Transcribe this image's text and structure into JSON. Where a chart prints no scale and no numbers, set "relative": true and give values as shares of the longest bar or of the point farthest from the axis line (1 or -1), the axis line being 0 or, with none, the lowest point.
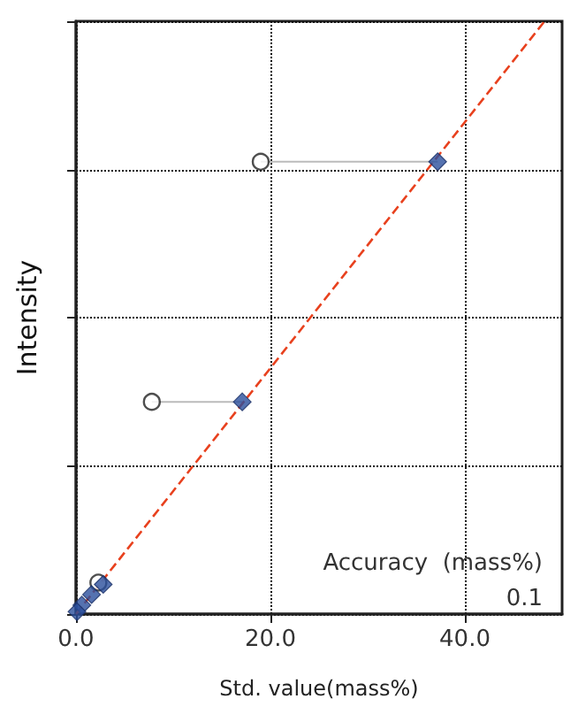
{
  "chart_data": {
    "type": "scatter",
    "relative": true,
    "xlabel": "Std. value(mass%)",
    "ylabel": "Intensity",
    "xlim": [
      0,
      50
    ],
    "xticks": [
      {
        "value": 0,
        "label": "0.0"
      },
      {
        "value": 20,
        "label": "20.0"
      },
      {
        "value": 40,
        "label": "40.0"
      }
    ],
    "tick_labels": "x",
    "grid": true,
    "annotations": [
      "Accuracy  (mass%)",
      "0.1"
    ],
    "series": [
      {
        "type": "line",
        "color": "#bbbbbb",
        "marker": "none",
        "line_style": "solid",
        "x": [
          19.0,
          37.2
        ],
        "values": [
          0.763,
          0.763
        ]
      },
      {
        "type": "line",
        "color": "#bbbbbb",
        "marker": "none",
        "line_style": "solid",
        "x": [
          7.8,
          17.1
        ],
        "values": [
          0.358,
          0.358
        ]
      },
      {
        "type": "line",
        "color": "#e8411e",
        "marker": "none",
        "line_style": "dashed",
        "x": [
          0,
          48.2
        ],
        "values": [
          0,
          1
        ]
      },
      {
        "color": "#ffffff",
        "marker": "circle",
        "x": [
          19.0,
          7.8,
          2.3
        ],
        "values": [
          0.763,
          0.358,
          0.053
        ]
      },
      {
        "color": "#2a4f9c",
        "marker": "diamond",
        "x": [
          37.2,
          17.1,
          2.8,
          1.6,
          0.6,
          0.1
        ],
        "values": [
          0.763,
          0.358,
          0.05,
          0.033,
          0.015,
          0.004
        ]
      }
    ]
  }
}
